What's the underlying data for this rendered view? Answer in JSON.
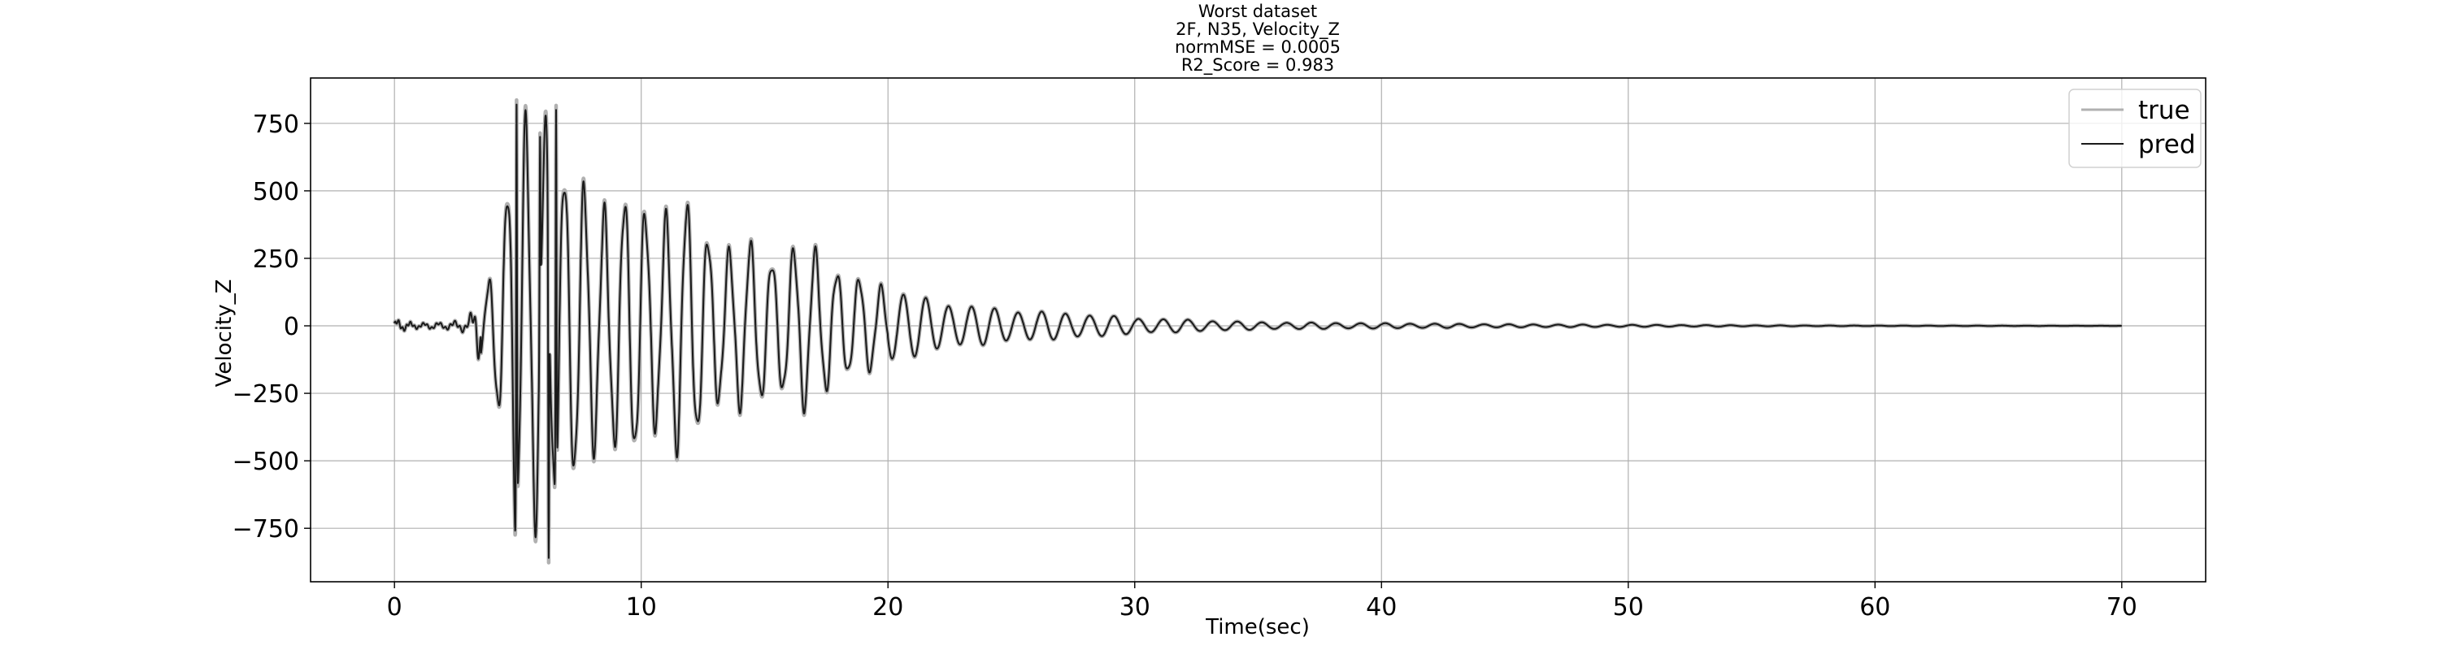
{
  "chart_data": {
    "type": "line",
    "title_lines": [
      "Worst dataset",
      "2F, N35, Velocity_Z",
      "normMSE = 0.0005",
      " R2_Score = 0.983"
    ],
    "xlabel": "Time(sec)",
    "ylabel": "Velocity_Z",
    "xlim": [
      -3.4,
      73.4
    ],
    "ylim": [
      -948,
      918
    ],
    "xticks": [
      0,
      10,
      20,
      30,
      40,
      50,
      60,
      70
    ],
    "yticks": [
      -750,
      -500,
      -250,
      0,
      250,
      500,
      750
    ],
    "grid": true,
    "legend_position": "upper right",
    "series": [
      {
        "name": "true",
        "color": "#b0b0b0",
        "envelope": [
          [
            0,
            18
          ],
          [
            1,
            8
          ],
          [
            2,
            10
          ],
          [
            3,
            20
          ],
          [
            3.8,
            160
          ],
          [
            4.5,
            520
          ],
          [
            4.9,
            820
          ],
          [
            5.5,
            700
          ],
          [
            6.2,
            860
          ],
          [
            7,
            560
          ],
          [
            8,
            500
          ],
          [
            9.5,
            470
          ],
          [
            10.5,
            430
          ],
          [
            11.5,
            480
          ],
          [
            12.5,
            380
          ],
          [
            13.5,
            300
          ],
          [
            14.5,
            300
          ],
          [
            15.5,
            270
          ],
          [
            16.5,
            300
          ],
          [
            17.5,
            270
          ],
          [
            18.5,
            180
          ],
          [
            20,
            150
          ],
          [
            22,
            90
          ],
          [
            25,
            60
          ],
          [
            28,
            45
          ],
          [
            30,
            30
          ],
          [
            35,
            14
          ],
          [
            40,
            10
          ],
          [
            45,
            6
          ],
          [
            50,
            4
          ],
          [
            55,
            2
          ],
          [
            60,
            1
          ],
          [
            70,
            0.2
          ]
        ],
        "period_sec": [
          [
            0,
            0.5
          ],
          [
            4,
            0.75
          ],
          [
            10,
            0.84
          ],
          [
            20,
            0.9
          ],
          [
            30,
            1.0
          ],
          [
            50,
            1.0
          ],
          [
            70,
            1.0
          ]
        ],
        "peaks": [
          [
            4.95,
            820
          ],
          [
            6.25,
            -860
          ],
          [
            6.55,
            800
          ],
          [
            5.9,
            700
          ]
        ]
      },
      {
        "name": "pred",
        "color": "#1a1a1a",
        "envelope": [
          [
            0,
            18
          ],
          [
            1,
            8
          ],
          [
            2,
            10
          ],
          [
            3,
            20
          ],
          [
            3.8,
            160
          ],
          [
            4.5,
            520
          ],
          [
            4.9,
            820
          ],
          [
            5.5,
            700
          ],
          [
            6.2,
            860
          ],
          [
            7,
            560
          ],
          [
            8,
            500
          ],
          [
            9.5,
            470
          ],
          [
            10.5,
            430
          ],
          [
            11.5,
            480
          ],
          [
            12.5,
            380
          ],
          [
            13.5,
            300
          ],
          [
            14.5,
            300
          ],
          [
            15.5,
            270
          ],
          [
            16.5,
            300
          ],
          [
            17.5,
            270
          ],
          [
            18.5,
            180
          ],
          [
            20,
            150
          ],
          [
            22,
            90
          ],
          [
            25,
            60
          ],
          [
            28,
            45
          ],
          [
            30,
            30
          ],
          [
            35,
            14
          ],
          [
            40,
            10
          ],
          [
            45,
            6
          ],
          [
            50,
            4
          ],
          [
            55,
            2
          ],
          [
            60,
            1
          ],
          [
            70,
            0.2
          ]
        ],
        "period_sec": [
          [
            0,
            0.5
          ],
          [
            4,
            0.75
          ],
          [
            10,
            0.84
          ],
          [
            20,
            0.9
          ],
          [
            30,
            1.0
          ],
          [
            50,
            1.0
          ],
          [
            70,
            1.0
          ]
        ],
        "peaks": [
          [
            4.95,
            820
          ],
          [
            6.25,
            -860
          ],
          [
            6.55,
            800
          ],
          [
            5.9,
            700
          ]
        ]
      }
    ]
  }
}
